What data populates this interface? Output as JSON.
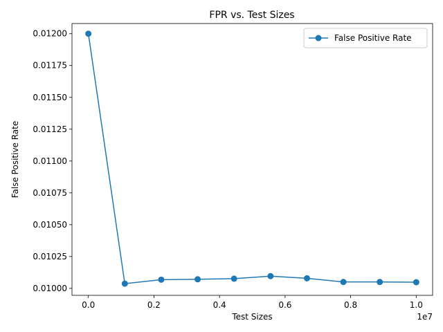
{
  "chart_data": {
    "type": "line",
    "title": "FPR vs. Test Sizes",
    "xlabel": "Test Sizes",
    "ylabel": "False Positive Rate",
    "x_offset_label": "1e7",
    "xlim": [
      -0.05,
      1.05
    ],
    "ylim": [
      0.009945,
      0.01208
    ],
    "x_ticks": [
      0.0,
      0.2,
      0.4,
      0.6,
      0.8,
      1.0
    ],
    "x_tick_labels": [
      "0.0",
      "0.2",
      "0.4",
      "0.6",
      "0.8",
      "1.0"
    ],
    "y_ticks": [
      0.01,
      0.01025,
      0.0105,
      0.01075,
      0.011,
      0.01125,
      0.0115,
      0.01175,
      0.012
    ],
    "y_tick_labels": [
      "0.01000",
      "0.01025",
      "0.01050",
      "0.01075",
      "0.01100",
      "0.01125",
      "0.01150",
      "0.01175",
      "0.01200"
    ],
    "grid": false,
    "legend_position": "top-right",
    "series": [
      {
        "name": "False Positive Rate",
        "color": "#1f77b4",
        "marker": "circle",
        "x": [
          0.0,
          0.1111,
          0.2222,
          0.3333,
          0.4444,
          0.5556,
          0.6667,
          0.7778,
          0.8889,
          1.0
        ],
        "values": [
          0.012,
          0.010037,
          0.010068,
          0.010071,
          0.010076,
          0.010096,
          0.010079,
          0.01005,
          0.01005,
          0.010048
        ]
      }
    ]
  }
}
